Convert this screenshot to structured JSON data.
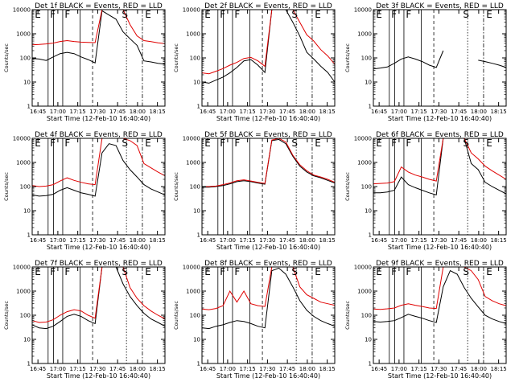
{
  "colors": {
    "events": "#000000",
    "lld": "#e00000",
    "axes": "#000000",
    "background": "#ffffff"
  },
  "chart_data": [
    {
      "type": "line",
      "title": "Det 1f BLACK = Events, RED = LLD",
      "xlabel": "Start Time (12-Feb-10 16:40:40)",
      "ylabel": "Counts/sec",
      "xticks": [
        "16:45",
        "17:00",
        "17:15",
        "17:30",
        "17:45",
        "18:00",
        "18:15"
      ],
      "yticks": [
        "1",
        "10",
        "100",
        "1000",
        "10000"
      ],
      "yscale": "log",
      "ylim": [
        1,
        10000
      ],
      "markers": [
        "E",
        "F",
        "F",
        "S",
        "E"
      ],
      "series": [
        {
          "values": [
            95,
            90,
            78,
            110,
            150,
            170,
            150,
            110,
            85,
            62,
            9000,
            6000,
            4000,
            1200,
            620,
            330,
            75,
            68,
            60,
            55
          ]
        },
        {
          "values": [
            350,
            360,
            380,
            410,
            480,
            520,
            480,
            450,
            440,
            430,
            10000,
            10000,
            10000,
            10000,
            2400,
            820,
            520,
            470,
            420,
            390
          ]
        }
      ]
    },
    {
      "type": "line",
      "title": "Det 2f BLACK = Events, RED = LLD",
      "xlabel": "Start Time (12-Feb-10 16:40:40)",
      "ylabel": "Counts/sec",
      "xticks": [
        "16:45",
        "17:00",
        "17:15",
        "17:30",
        "17:45",
        "18:00",
        "18:15"
      ],
      "yticks": [
        "1",
        "10",
        "100",
        "1000",
        "10000"
      ],
      "yscale": "log",
      "ylim": [
        1,
        10000
      ],
      "markers": [
        "E",
        "F",
        "F",
        "S",
        "E"
      ],
      "series": [
        {
          "values": [
            10,
            9,
            12,
            16,
            24,
            40,
            75,
            85,
            50,
            25,
            10000,
            10000,
            10000,
            3000,
            800,
            170,
            90,
            45,
            25,
            10
          ]
        },
        {
          "values": [
            24,
            22,
            28,
            36,
            50,
            65,
            95,
            105,
            75,
            45,
            10000,
            10000,
            10000,
            10000,
            3000,
            900,
            500,
            220,
            120,
            55
          ]
        }
      ]
    },
    {
      "type": "line",
      "title": "Det 3f BLACK = Events, RED = LLD",
      "xlabel": "Start Time (12-Feb-10 16:40:40)",
      "ylabel": "Counts/sec",
      "xticks": [
        "16:45",
        "17:00",
        "17:15",
        "17:30",
        "17:45",
        "18:00",
        "18:15"
      ],
      "yticks": [
        "1",
        "10",
        "100",
        "1000",
        "10000"
      ],
      "yscale": "log",
      "ylim": [
        1,
        10000
      ],
      "markers": [
        "E",
        "F",
        "F",
        "S",
        "E"
      ],
      "series": [
        {
          "values": [
            35,
            38,
            42,
            60,
            90,
            110,
            90,
            70,
            50,
            40,
            200,
            "",
            "",
            "",
            "",
            80,
            70,
            60,
            50,
            40
          ]
        },
        {
          "values": [
            10000,
            10000,
            10000,
            10000,
            10000,
            10000,
            10000,
            10000,
            10000,
            10000,
            10000,
            10000,
            10000,
            10000,
            10000,
            10000,
            10000,
            10000,
            10000,
            10000
          ]
        }
      ]
    },
    {
      "type": "line",
      "title": "Det 4f BLACK = Events, RED = LLD",
      "xlabel": "Start Time (12-Feb-10 16:40:40)",
      "ylabel": "Counts/sec",
      "xticks": [
        "16:45",
        "17:00",
        "17:15",
        "17:30",
        "17:45",
        "18:00",
        "18:15"
      ],
      "yticks": [
        "1",
        "10",
        "100",
        "1000",
        "10000"
      ],
      "yscale": "log",
      "ylim": [
        1,
        10000
      ],
      "markers": [
        "E",
        "F",
        "F",
        "S",
        "E"
      ],
      "series": [
        {
          "values": [
            45,
            40,
            42,
            48,
            70,
            90,
            70,
            55,
            48,
            40,
            2500,
            6000,
            5000,
            1200,
            500,
            250,
            120,
            80,
            60,
            45
          ]
        },
        {
          "values": [
            110,
            100,
            105,
            120,
            170,
            230,
            180,
            150,
            130,
            120,
            10000,
            10000,
            10000,
            10000,
            8000,
            5000,
            900,
            600,
            400,
            280
          ]
        }
      ]
    },
    {
      "type": "line",
      "title": "Det 5f BLACK = Events, RED = LLD",
      "xlabel": "Start Time (12-Feb-10 16:40:40)",
      "ylabel": "Counts/sec",
      "xticks": [
        "16:45",
        "17:00",
        "17:15",
        "17:30",
        "17:45",
        "18:00",
        "18:15"
      ],
      "yticks": [
        "1",
        "10",
        "100",
        "1000",
        "10000"
      ],
      "yscale": "log",
      "ylim": [
        1,
        10000
      ],
      "markers": [
        "E",
        "F",
        "F",
        "S",
        "E"
      ],
      "series": [
        {
          "values": [
            95,
            95,
            100,
            110,
            130,
            160,
            175,
            160,
            140,
            125,
            8000,
            9000,
            6000,
            1800,
            700,
            400,
            280,
            230,
            180,
            140
          ]
        },
        {
          "values": [
            100,
            100,
            105,
            120,
            140,
            175,
            190,
            170,
            150,
            135,
            8500,
            10000,
            7000,
            2000,
            800,
            450,
            300,
            250,
            200,
            150
          ]
        }
      ]
    },
    {
      "type": "line",
      "title": "Det 6f BLACK = Events, RED = LLD",
      "xlabel": "Start Time (12-Feb-10 16:40:40)",
      "ylabel": "Counts/sec",
      "xticks": [
        "16:45",
        "17:00",
        "17:15",
        "17:30",
        "17:45",
        "18:00",
        "18:15"
      ],
      "yticks": [
        "1",
        "10",
        "100",
        "1000",
        "10000"
      ],
      "yscale": "log",
      "ylim": [
        1,
        10000
      ],
      "markers": [
        "E",
        "F",
        "F",
        "S",
        "E"
      ],
      "series": [
        {
          "values": [
            55,
            55,
            60,
            70,
            250,
            120,
            90,
            70,
            55,
            45,
            10000,
            10000,
            10000,
            10000,
            900,
            500,
            150,
            100,
            70,
            50
          ]
        },
        {
          "values": [
            130,
            135,
            140,
            160,
            650,
            400,
            300,
            250,
            200,
            170,
            10000,
            10000,
            10000,
            10000,
            2500,
            1400,
            700,
            450,
            300,
            200
          ]
        }
      ]
    },
    {
      "type": "line",
      "title": "Det 7f BLACK = Events, RED = LLD",
      "xlabel": "Start Time (12-Feb-10 16:40:40)",
      "ylabel": "Counts/sec",
      "xticks": [
        "16:45",
        "17:00",
        "17:15",
        "17:30",
        "17:45",
        "18:00",
        "18:15"
      ],
      "yticks": [
        "1",
        "10",
        "100",
        "1000",
        "10000"
      ],
      "yscale": "log",
      "ylim": [
        1,
        10000
      ],
      "markers": [
        "E",
        "F",
        "F",
        "S",
        "E"
      ],
      "series": [
        {
          "values": [
            40,
            30,
            28,
            35,
            55,
            90,
            110,
            90,
            60,
            45,
            10000,
            10000,
            10000,
            2000,
            600,
            250,
            120,
            70,
            50,
            35
          ]
        },
        {
          "values": [
            60,
            50,
            52,
            65,
            100,
            140,
            170,
            150,
            100,
            75,
            10000,
            10000,
            10000,
            10000,
            1400,
            500,
            250,
            150,
            100,
            70
          ]
        }
      ]
    },
    {
      "type": "line",
      "title": "Det 8f BLACK = Events, RED = LLD",
      "xlabel": "Start Time (12-Feb-10 16:40:40)",
      "ylabel": "Counts/sec",
      "xticks": [
        "16:45",
        "17:00",
        "17:15",
        "17:30",
        "17:45",
        "18:00",
        "18:15"
      ],
      "yticks": [
        "1",
        "10",
        "100",
        "1000",
        "10000"
      ],
      "yscale": "log",
      "ylim": [
        1,
        10000
      ],
      "markers": [
        "E",
        "F",
        "F",
        "S",
        "E"
      ],
      "series": [
        {
          "values": [
            30,
            28,
            35,
            40,
            50,
            60,
            55,
            45,
            35,
            30,
            7000,
            9000,
            5000,
            1500,
            400,
            160,
            90,
            60,
            45,
            35
          ]
        },
        {
          "values": [
            180,
            170,
            190,
            250,
            1000,
            350,
            1000,
            300,
            250,
            230,
            10000,
            10000,
            10000,
            10000,
            1500,
            700,
            500,
            350,
            300,
            260
          ]
        }
      ]
    },
    {
      "type": "line",
      "title": "Det 9f BLACK = Events, RED = LLD",
      "xlabel": "Start Time (12-Feb-10 16:40:40)",
      "ylabel": "Counts/sec",
      "xticks": [
        "16:45",
        "17:00",
        "17:15",
        "17:30",
        "17:45",
        "18:00",
        "18:15"
      ],
      "yticks": [
        "1",
        "10",
        "100",
        "1000",
        "10000"
      ],
      "yscale": "log",
      "ylim": [
        1,
        10000
      ],
      "markers": [
        "E",
        "F",
        "F",
        "S",
        "E"
      ],
      "series": [
        {
          "values": [
            55,
            52,
            55,
            60,
            80,
            110,
            90,
            75,
            60,
            50,
            1500,
            7000,
            5000,
            1400,
            500,
            220,
            100,
            70,
            55,
            45
          ]
        },
        {
          "values": [
            180,
            175,
            185,
            200,
            260,
            300,
            260,
            230,
            200,
            190,
            10000,
            10000,
            10000,
            10000,
            7000,
            3000,
            600,
            400,
            300,
            250
          ]
        }
      ]
    }
  ]
}
